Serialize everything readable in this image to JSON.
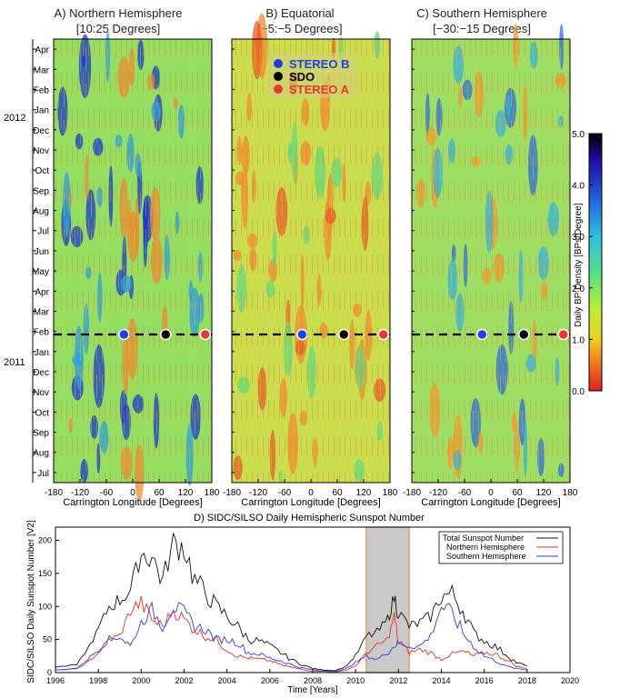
{
  "colors": {
    "stereo_b": "#1f3fe0",
    "sdo": "#000000",
    "stereo_a": "#e23a2e",
    "total": "#111111",
    "north": "#e8302a",
    "south": "#2b3fe0",
    "highlight": "#c9c9c9",
    "highlight_edge": "#f0a060"
  },
  "chart_data": [
    {
      "type": "heatmap",
      "id": "north",
      "title": "A) Northern Hemisphere",
      "subtitle": "[10:25 Degrees]",
      "xlabel": "Carrington Longitude [Degrees]",
      "xlim": [
        -180,
        180
      ],
      "xticks": [
        "-180",
        "-120",
        "-60",
        "0",
        "60",
        "120",
        "180"
      ],
      "y_months": [
        "Apr",
        "Mar",
        "Feb",
        "Jan",
        "Dec",
        "Nov",
        "Oct",
        "Sep",
        "Aug",
        "Jul",
        "Jun",
        "May",
        "Apr",
        "Mar",
        "Feb",
        "Jan",
        "Dec",
        "Nov",
        "Oct",
        "Sep",
        "Aug",
        "Jul"
      ],
      "y_years": [
        "2012",
        "2011"
      ],
      "markers": [
        {
          "name": "STEREO B",
          "lon": -20
        },
        {
          "name": "SDO",
          "lon": 75
        },
        {
          "name": "STEREO A",
          "lon": 165
        }
      ],
      "marker_date": "2011-02-15"
    },
    {
      "type": "heatmap",
      "id": "equatorial",
      "title": "B) Equatorial",
      "subtitle": "[−5:−5 Degrees]",
      "xlabel": "Carrington Longitude [Degrees]",
      "xlim": [
        -180,
        180
      ],
      "xticks": [
        "-180",
        "-120",
        "-60",
        "0",
        "60",
        "120",
        "180"
      ],
      "legend": [
        "STEREO B",
        "SDO",
        "STEREO A"
      ],
      "markers": [
        {
          "name": "STEREO B",
          "lon": -20
        },
        {
          "name": "SDO",
          "lon": 75
        },
        {
          "name": "STEREO A",
          "lon": 165
        }
      ]
    },
    {
      "type": "heatmap",
      "id": "south",
      "title": "C) Southern Hemisphere",
      "subtitle": "[−30:−15 Degrees]",
      "xlabel": "Carrington Longitude [Degrees]",
      "xlim": [
        -180,
        180
      ],
      "xticks": [
        "-180",
        "-120",
        "-60",
        "0",
        "60",
        "120",
        "180"
      ],
      "markers": [
        {
          "name": "STEREO B",
          "lon": -20
        },
        {
          "name": "SDO",
          "lon": 75
        },
        {
          "name": "STEREO A",
          "lon": 165
        }
      ]
    },
    {
      "type": "colorbar",
      "label": "Daily BP Density [BPs/Degree]",
      "range": [
        0.0,
        5.0
      ],
      "ticks": [
        "0.0",
        "1.0",
        "2.0",
        "3.0",
        "4.0",
        "5.0"
      ]
    },
    {
      "type": "line",
      "title": "D) SIDC/SILSO Daily Hemispheric Sunspot Number",
      "xlabel": "Time [Years]",
      "ylabel": "SIDC/SILSO Daily Sunspot Number [V2]",
      "xlim": [
        1996,
        2020
      ],
      "ylim": [
        0,
        220
      ],
      "xticks": [
        "1996",
        "1998",
        "2000",
        "2002",
        "2004",
        "2006",
        "2008",
        "2010",
        "2012",
        "2014",
        "2016",
        "2018",
        "2020"
      ],
      "yticks": [
        "0",
        "50",
        "100",
        "150",
        "200"
      ],
      "highlight_span": [
        2010.5,
        2012.5
      ],
      "x": [
        1996,
        1997,
        1997.5,
        1998,
        1998.5,
        1999,
        1999.5,
        2000,
        2000.5,
        2001,
        2001.5,
        2002,
        2002.5,
        2003,
        2003.5,
        2004,
        2004.5,
        2005,
        2005.5,
        2006,
        2006.5,
        2007,
        2007.5,
        2008,
        2008.5,
        2009,
        2009.5,
        2010,
        2010.5,
        2011,
        2011.5,
        2011.8,
        2012,
        2012.5,
        2013,
        2013.5,
        2014,
        2014.5,
        2015,
        2015.5,
        2016,
        2016.5,
        2017,
        2017.5,
        2018
      ],
      "series": [
        {
          "name": "Total Sunspot Number",
          "values": [
            8,
            12,
            35,
            65,
            100,
            110,
            125,
            180,
            175,
            140,
            195,
            190,
            140,
            120,
            100,
            85,
            70,
            50,
            48,
            40,
            30,
            20,
            12,
            6,
            4,
            3,
            8,
            25,
            55,
            60,
            80,
            115,
            90,
            70,
            75,
            85,
            115,
            120,
            95,
            60,
            48,
            40,
            28,
            15,
            10
          ]
        },
        {
          "name": "Northern Hemisphere",
          "values": [
            4,
            6,
            15,
            30,
            50,
            55,
            95,
            105,
            80,
            70,
            95,
            80,
            65,
            55,
            50,
            35,
            25,
            22,
            20,
            18,
            12,
            8,
            5,
            2,
            2,
            1,
            3,
            10,
            30,
            40,
            50,
            85,
            45,
            30,
            35,
            30,
            20,
            28,
            32,
            25,
            30,
            28,
            20,
            10,
            5
          ]
        },
        {
          "name": "Southern Hemisphere",
          "values": [
            4,
            6,
            20,
            35,
            50,
            55,
            40,
            75,
            95,
            70,
            100,
            90,
            70,
            65,
            50,
            50,
            45,
            30,
            28,
            22,
            18,
            12,
            7,
            4,
            2,
            2,
            5,
            15,
            25,
            20,
            30,
            40,
            45,
            40,
            40,
            55,
            100,
            90,
            60,
            40,
            25,
            18,
            10,
            6,
            4
          ]
        }
      ]
    }
  ]
}
